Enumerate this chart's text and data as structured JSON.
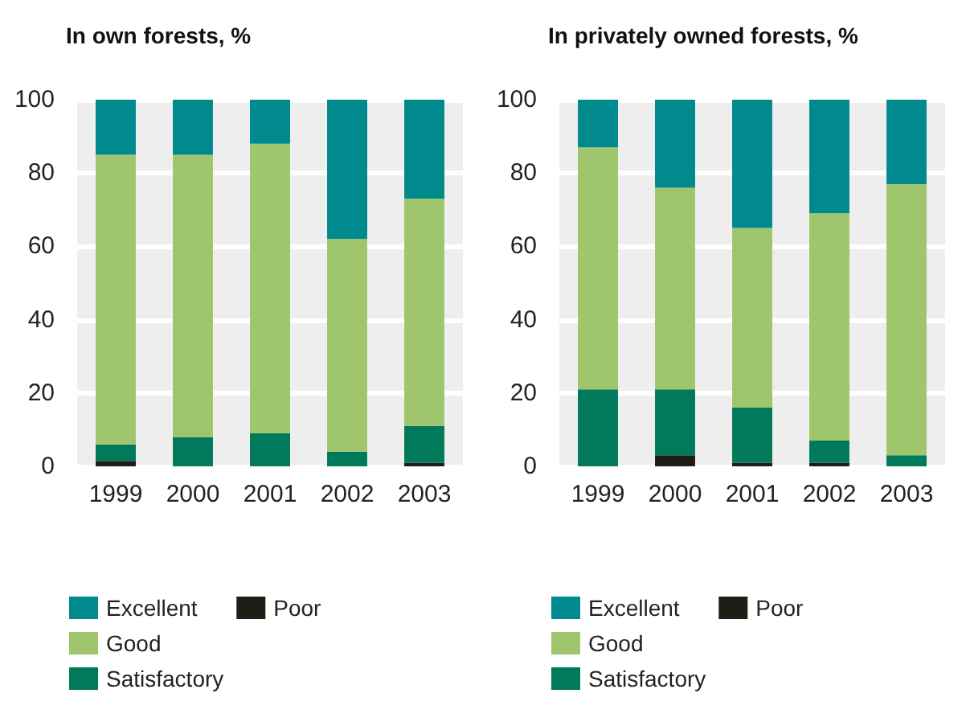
{
  "chart_data": [
    {
      "type": "bar",
      "title": "In own forests, %",
      "categories": [
        "1999",
        "2000",
        "2001",
        "2002",
        "2003"
      ],
      "stacked": true,
      "ylim": [
        0,
        100
      ],
      "yticks": [
        0,
        20,
        40,
        60,
        80,
        100
      ],
      "grid": "y",
      "legend": "bottom left",
      "series": [
        {
          "name": "Poor",
          "color": "#1e1e16",
          "values": [
            1.5,
            0,
            0,
            0,
            1
          ]
        },
        {
          "name": "Satisfactory",
          "color": "#007a5a",
          "values": [
            4.5,
            8,
            9,
            4,
            10
          ]
        },
        {
          "name": "Good",
          "color": "#9fc66c",
          "values": [
            79,
            77,
            79,
            58,
            62
          ]
        },
        {
          "name": "Excellent",
          "color": "#008a8e",
          "values": [
            15,
            15,
            12,
            38,
            27
          ]
        }
      ]
    },
    {
      "type": "bar",
      "title": "In privately owned forests, %",
      "categories": [
        "1999",
        "2000",
        "2001",
        "2002",
        "2003"
      ],
      "stacked": true,
      "ylim": [
        0,
        100
      ],
      "yticks": [
        0,
        20,
        40,
        60,
        80,
        100
      ],
      "grid": "y",
      "legend": "bottom left",
      "series": [
        {
          "name": "Poor",
          "color": "#1e1e16",
          "values": [
            0,
            3,
            1,
            1,
            0
          ]
        },
        {
          "name": "Satisfactory",
          "color": "#007a5a",
          "values": [
            21,
            18,
            15,
            6,
            3
          ]
        },
        {
          "name": "Good",
          "color": "#9fc66c",
          "values": [
            66,
            55,
            49,
            62,
            74
          ]
        },
        {
          "name": "Excellent",
          "color": "#008a8e",
          "values": [
            13,
            24,
            35,
            31,
            23
          ]
        }
      ]
    }
  ]
}
